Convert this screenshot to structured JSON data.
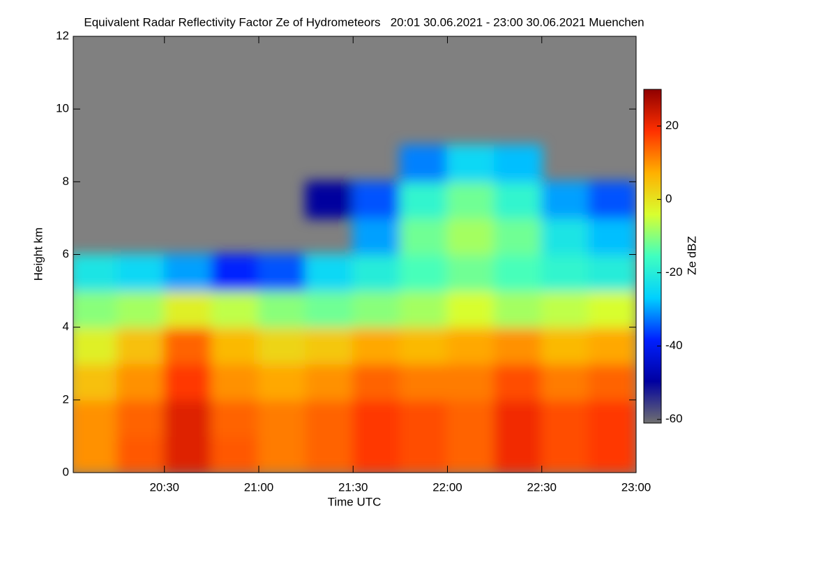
{
  "chart_data": {
    "type": "heatmap",
    "title": "Equivalent Radar Reflectivity Factor Ze of Hydrometeors   20:01 30.06.2021 - 23:00 30.06.2021 Muenchen",
    "x_label": "Time UTC",
    "y_label": "Height km",
    "colorbar_label": "Ze dBZ",
    "xlim": [
      "20:01",
      "23:00"
    ],
    "xticks": [
      "20:30",
      "21:00",
      "21:30",
      "22:00",
      "22:30",
      "23:00"
    ],
    "ylim": [
      0,
      12
    ],
    "yticks": [
      0,
      2,
      4,
      6,
      8,
      10,
      12
    ],
    "zlim": [
      -61,
      30
    ],
    "zticks": [
      -60,
      -40,
      -20,
      0,
      20
    ],
    "background_color": "#808080",
    "colormap": [
      "#707070",
      "#0000a0",
      "#0020ff",
      "#00d0ff",
      "#40ffc0",
      "#d8ff30",
      "#ffb000",
      "#ff3000",
      "#900000"
    ],
    "x_bins": [
      "20:00",
      "20:15",
      "20:30",
      "20:45",
      "21:00",
      "21:15",
      "21:30",
      "21:45",
      "22:00",
      "22:15",
      "22:30",
      "22:45",
      "23:00"
    ],
    "y_bins": [
      0,
      1,
      2,
      3,
      4,
      5,
      6,
      7,
      8,
      9,
      10,
      11,
      12
    ],
    "z": [
      [
        10,
        15,
        22,
        15,
        12,
        14,
        18,
        16,
        14,
        20,
        16,
        18
      ],
      [
        10,
        14,
        22,
        14,
        12,
        14,
        18,
        16,
        14,
        20,
        16,
        18
      ],
      [
        5,
        10,
        18,
        10,
        8,
        10,
        14,
        12,
        12,
        16,
        12,
        14
      ],
      [
        -2,
        5,
        14,
        6,
        2,
        4,
        8,
        6,
        8,
        10,
        6,
        8
      ],
      [
        -10,
        -8,
        -2,
        -6,
        -10,
        -12,
        -10,
        -8,
        -4,
        -8,
        -6,
        -4
      ],
      [
        -22,
        -25,
        -30,
        -38,
        -35,
        -25,
        -20,
        -15,
        -12,
        -15,
        -18,
        -20
      ],
      [
        null,
        null,
        null,
        null,
        null,
        null,
        -30,
        -12,
        -8,
        -12,
        -22,
        -28
      ],
      [
        null,
        null,
        null,
        null,
        null,
        -50,
        -35,
        -18,
        -12,
        -18,
        -30,
        -35
      ],
      [
        null,
        null,
        null,
        null,
        null,
        null,
        null,
        -32,
        -25,
        -28,
        null,
        null
      ],
      [
        null,
        null,
        null,
        null,
        null,
        null,
        null,
        null,
        null,
        null,
        null,
        null
      ],
      [
        null,
        null,
        null,
        null,
        null,
        null,
        null,
        null,
        null,
        null,
        null,
        null
      ],
      [
        null,
        null,
        null,
        null,
        null,
        null,
        null,
        null,
        null,
        null,
        null,
        null
      ]
    ]
  }
}
